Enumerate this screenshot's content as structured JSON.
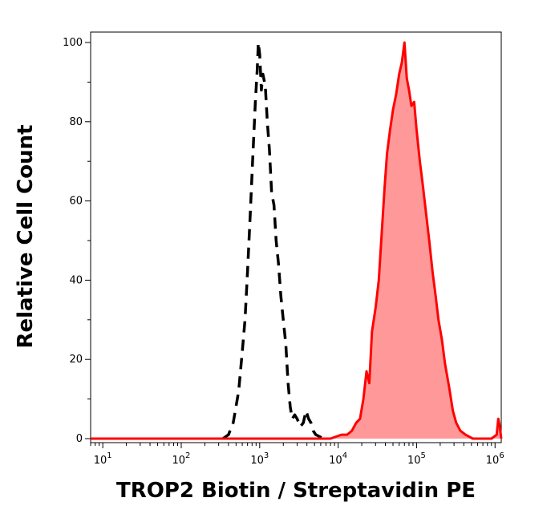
{
  "chart_data": {
    "type": "area",
    "xlabel": "TROP2 Biotin / Streptavidin PE",
    "ylabel": "Relative Cell Count",
    "x_scale": "log",
    "xlim": [
      7,
      1200000
    ],
    "ylim": [
      0,
      100
    ],
    "grid": false,
    "x_ticks": [
      {
        "base": "10",
        "exp": "1",
        "value": 10
      },
      {
        "base": "10",
        "exp": "2",
        "value": 100
      },
      {
        "base": "10",
        "exp": "3",
        "value": 1000
      },
      {
        "base": "10",
        "exp": "4",
        "value": 10000
      },
      {
        "base": "10",
        "exp": "5",
        "value": 100000
      },
      {
        "base": "10",
        "exp": "6",
        "value": 1000000
      }
    ],
    "y_ticks": [
      {
        "label": "0",
        "value": 0
      },
      {
        "label": "20",
        "value": 20
      },
      {
        "label": "40",
        "value": 40
      },
      {
        "label": "60",
        "value": 60
      },
      {
        "label": "80",
        "value": 80
      },
      {
        "label": "100",
        "value": 100
      }
    ],
    "series": [
      {
        "style": "dashed",
        "color": "#000000",
        "fill": false,
        "points": [
          [
            340,
            0
          ],
          [
            400,
            1
          ],
          [
            460,
            4
          ],
          [
            540,
            12
          ],
          [
            600,
            22
          ],
          [
            650,
            30
          ],
          [
            700,
            42
          ],
          [
            760,
            57
          ],
          [
            820,
            72
          ],
          [
            880,
            85
          ],
          [
            930,
            93
          ],
          [
            960,
            100
          ],
          [
            1000,
            97
          ],
          [
            1050,
            88
          ],
          [
            1100,
            92
          ],
          [
            1180,
            89
          ],
          [
            1250,
            80
          ],
          [
            1330,
            73
          ],
          [
            1420,
            62
          ],
          [
            1520,
            59
          ],
          [
            1620,
            50
          ],
          [
            1740,
            44
          ],
          [
            1860,
            36
          ],
          [
            2000,
            30
          ],
          [
            2150,
            24
          ],
          [
            2300,
            14
          ],
          [
            2450,
            8
          ],
          [
            2600,
            5
          ],
          [
            2800,
            6
          ],
          [
            3000,
            5
          ],
          [
            3300,
            3
          ],
          [
            3600,
            4
          ],
          [
            3900,
            7
          ],
          [
            4200,
            5
          ],
          [
            4500,
            4
          ],
          [
            4800,
            2
          ],
          [
            5200,
            1
          ],
          [
            5800,
            0.5
          ],
          [
            6500,
            0
          ]
        ]
      },
      {
        "style": "solid",
        "color": "#ff0000",
        "fill": true,
        "fill_color": "#ff9999",
        "points": [
          [
            7,
            0
          ],
          [
            100,
            0
          ],
          [
            1000,
            0
          ],
          [
            3000,
            0
          ],
          [
            8000,
            0
          ],
          [
            11000,
            1
          ],
          [
            13000,
            1
          ],
          [
            15000,
            2
          ],
          [
            17000,
            4
          ],
          [
            19000,
            5
          ],
          [
            21000,
            10
          ],
          [
            23000,
            17
          ],
          [
            25000,
            14
          ],
          [
            27000,
            27
          ],
          [
            30000,
            33
          ],
          [
            33000,
            40
          ],
          [
            36000,
            52
          ],
          [
            39000,
            63
          ],
          [
            42000,
            72
          ],
          [
            46000,
            78
          ],
          [
            50000,
            83
          ],
          [
            55000,
            87
          ],
          [
            60000,
            92
          ],
          [
            65000,
            95
          ],
          [
            70000,
            100
          ],
          [
            75000,
            91
          ],
          [
            80000,
            88
          ],
          [
            86000,
            84
          ],
          [
            93000,
            85
          ],
          [
            100000,
            78
          ],
          [
            110000,
            70
          ],
          [
            120000,
            64
          ],
          [
            130000,
            58
          ],
          [
            145000,
            50
          ],
          [
            160000,
            42
          ],
          [
            175000,
            36
          ],
          [
            190000,
            30
          ],
          [
            210000,
            25
          ],
          [
            230000,
            19
          ],
          [
            260000,
            13
          ],
          [
            290000,
            7
          ],
          [
            320000,
            4
          ],
          [
            360000,
            2
          ],
          [
            420000,
            1
          ],
          [
            520000,
            0
          ],
          [
            700000,
            0
          ],
          [
            900000,
            0
          ],
          [
            1050000,
            1
          ],
          [
            1100000,
            5
          ],
          [
            1150000,
            3
          ],
          [
            1200000,
            0
          ]
        ]
      }
    ]
  }
}
